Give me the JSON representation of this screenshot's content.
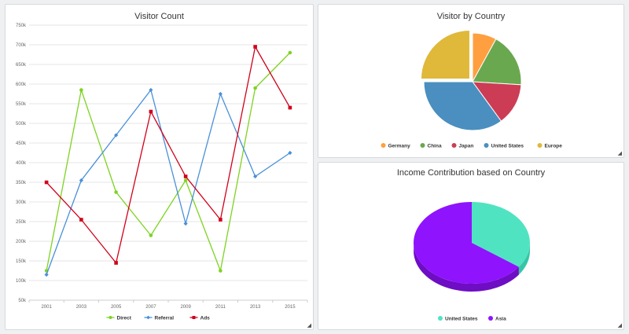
{
  "panels": {
    "visitor_count": {
      "title": "Visitor Count",
      "resize_icon": "resize-corner-icon"
    },
    "visitor_country": {
      "title": "Visitor by Country",
      "resize_icon": "resize-corner-icon"
    },
    "income": {
      "title": "Income Contribution based on Country",
      "resize_icon": "resize-corner-icon"
    }
  },
  "chart_data": [
    {
      "type": "line",
      "title": "Visitor Count",
      "xlabel": "",
      "ylabel": "",
      "categories": [
        "2001",
        "2003",
        "2005",
        "2007",
        "2009",
        "2011",
        "2013",
        "2015"
      ],
      "yticks": [
        "50k",
        "100k",
        "150k",
        "200k",
        "250k",
        "300k",
        "350k",
        "400k",
        "450k",
        "500k",
        "550k",
        "600k",
        "650k",
        "700k",
        "750k"
      ],
      "ylim": [
        50000,
        750000
      ],
      "grid": true,
      "legend_position": "bottom",
      "series": [
        {
          "name": "Direct",
          "color": "#7ed321",
          "marker": "circle",
          "values": [
            125000,
            585000,
            325000,
            215000,
            355000,
            125000,
            590000,
            680000
          ]
        },
        {
          "name": "Referral",
          "color": "#4a90d9",
          "marker": "diamond",
          "values": [
            115000,
            355000,
            470000,
            585000,
            245000,
            575000,
            365000,
            425000
          ]
        },
        {
          "name": "Ads",
          "color": "#d0021b",
          "marker": "square",
          "values": [
            350000,
            255000,
            145000,
            530000,
            365000,
            255000,
            695000,
            540000
          ]
        }
      ]
    },
    {
      "type": "pie",
      "title": "Visitor by Country",
      "legend_position": "bottom",
      "slices": [
        {
          "label": "Germany",
          "value": 8,
          "color": "#ff9f3f"
        },
        {
          "label": "China",
          "value": 18,
          "color": "#6aa84f"
        },
        {
          "label": "Japan",
          "value": 14,
          "color": "#cc3c55"
        },
        {
          "label": "United States",
          "value": 35,
          "color": "#4a8fbf"
        },
        {
          "label": "Europe",
          "value": 25,
          "color": "#e0b83a"
        }
      ]
    },
    {
      "type": "pie",
      "title": "Income Contribution based on Country",
      "style": "3d",
      "legend_position": "bottom",
      "slices": [
        {
          "label": "United States",
          "value": 35,
          "color": "#50e3c2",
          "side_color": "#36c5a6"
        },
        {
          "label": "Asia",
          "value": 65,
          "color": "#8f13fd",
          "side_color": "#6e0dc4"
        }
      ]
    }
  ]
}
